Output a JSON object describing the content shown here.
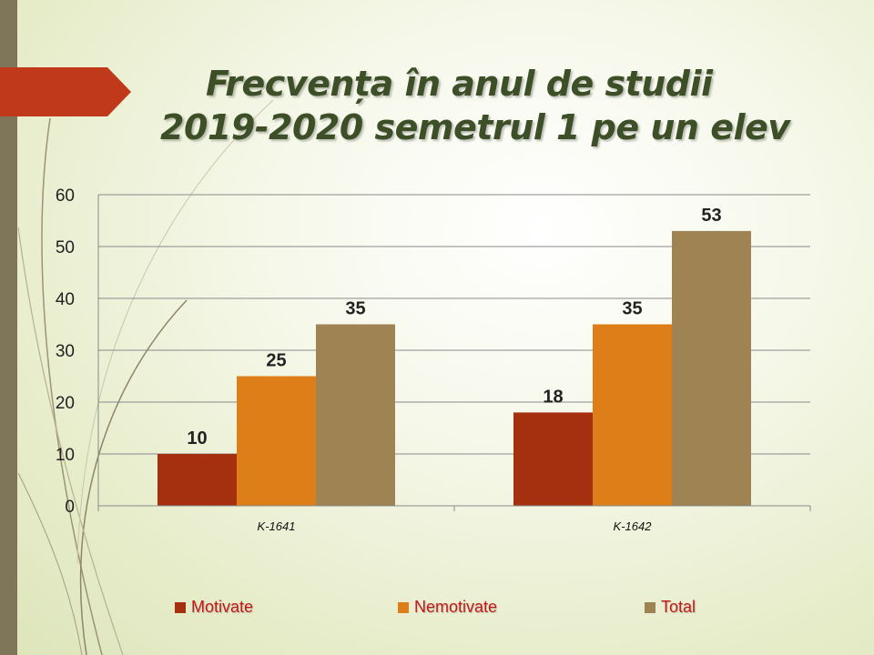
{
  "chart_data": {
    "type": "bar",
    "title": "Frecvența în anul de studii 2019-2020 semetrul 1 pe un elev",
    "title_lines": [
      "Frecvența în anul de studii",
      "2019-2020 semetrul 1 pe un elev"
    ],
    "categories": [
      "K-1641",
      "K-1642"
    ],
    "series": [
      {
        "name": "Motivate",
        "values": [
          10,
          18
        ],
        "color": "#a53010"
      },
      {
        "name": "Nemotivate",
        "values": [
          25,
          35
        ],
        "color": "#de7e18"
      },
      {
        "name": "Total",
        "values": [
          35,
          53
        ],
        "color": "#9f8352"
      }
    ],
    "ylim": [
      0,
      60
    ],
    "yticks": [
      0,
      10,
      20,
      30,
      40,
      50,
      60
    ],
    "grid": true,
    "legend_position": "bottom",
    "xlabel": "",
    "ylabel": ""
  },
  "colors": {
    "title": "#3d4f27",
    "legend_text": "#c41919",
    "gridline": "#8a8a8a",
    "side_bar": "#7f765a",
    "arrow_tab": "#c0391a"
  }
}
